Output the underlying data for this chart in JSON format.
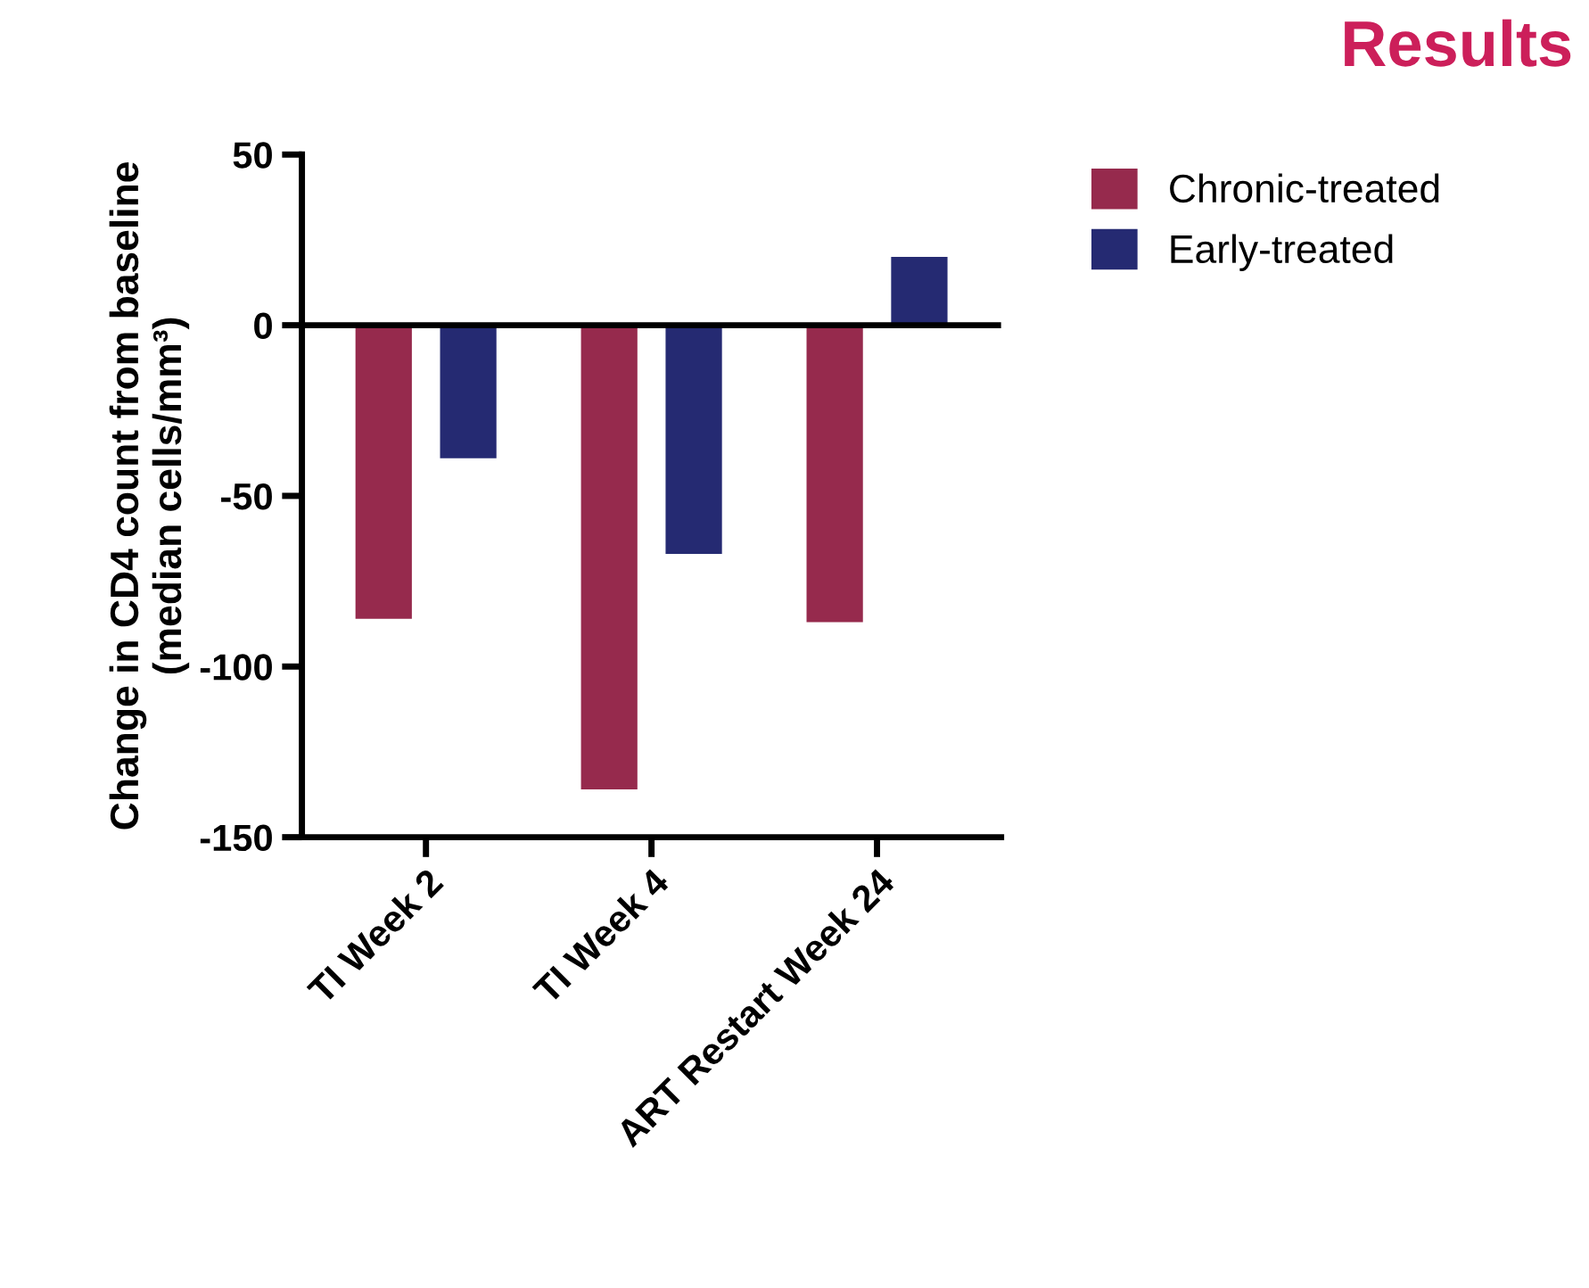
{
  "chart_data": {
    "type": "bar",
    "title": "Results",
    "ylabel": "Change in CD4 count from baseline\n(median cells/mm³)",
    "categories": [
      "TI Week 2",
      "TI Week 4",
      "ART Restart Week 24"
    ],
    "series": [
      {
        "name": "Chronic-treated",
        "color": "#962a4d",
        "values": [
          -86,
          -136,
          -87
        ]
      },
      {
        "name": "Early-treated",
        "color": "#252a72",
        "values": [
          -39,
          -67,
          20
        ]
      }
    ],
    "ylim": [
      -150,
      50
    ],
    "yticks": [
      -150,
      -100,
      -50,
      0,
      50
    ],
    "ref_lines": [
      {
        "axis": "y",
        "value": 0,
        "color": "#000000"
      }
    ],
    "grid": false,
    "legend": "top right"
  }
}
